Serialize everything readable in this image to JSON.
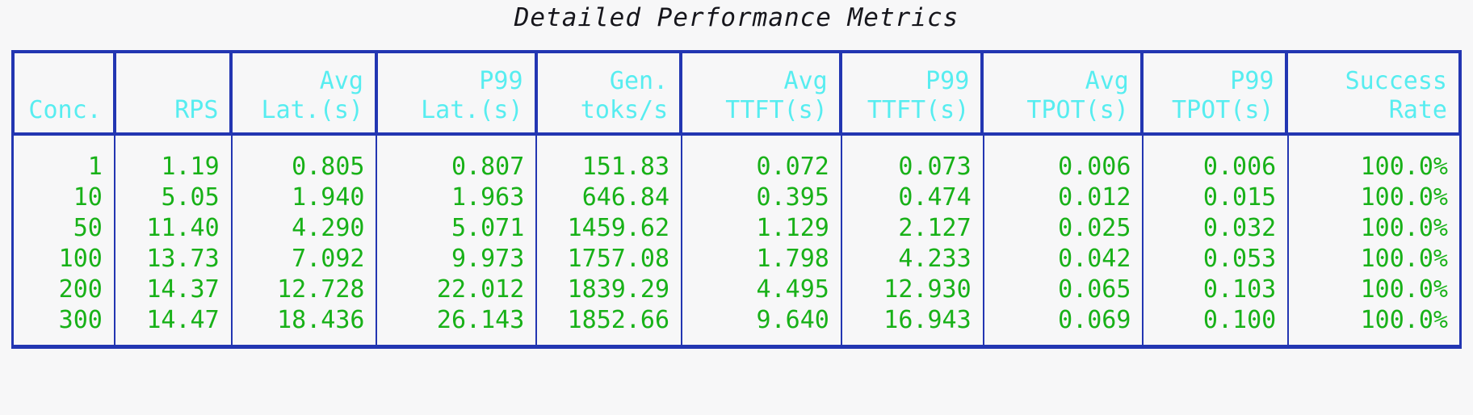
{
  "title": "Detailed Performance Metrics",
  "colors": {
    "border_blue": "#2336b2",
    "header_text_cyan": "#57edf0",
    "data_text_green": "#18b118",
    "background": "#f7f7f8",
    "title_text": "#16161c"
  },
  "table": {
    "columns": [
      {
        "id": "conc",
        "label_lines": [
          "Conc."
        ]
      },
      {
        "id": "rps",
        "label_lines": [
          "RPS"
        ]
      },
      {
        "id": "avg-lat",
        "label_lines": [
          "Avg",
          "Lat.(s)"
        ]
      },
      {
        "id": "p99-lat",
        "label_lines": [
          "P99",
          "Lat.(s)"
        ]
      },
      {
        "id": "gen-toks",
        "label_lines": [
          "Gen.",
          "toks/s"
        ]
      },
      {
        "id": "avg-ttft",
        "label_lines": [
          "Avg",
          "TTFT(s)"
        ]
      },
      {
        "id": "p99-ttft",
        "label_lines": [
          "P99",
          "TTFT(s)"
        ]
      },
      {
        "id": "avg-tpot",
        "label_lines": [
          "Avg",
          "TPOT(s)"
        ]
      },
      {
        "id": "p99-tpot",
        "label_lines": [
          "P99",
          "TPOT(s)"
        ]
      },
      {
        "id": "success-rate",
        "label_lines": [
          "Success",
          "Rate"
        ]
      }
    ],
    "rows": [
      [
        "1",
        "1.19",
        "0.805",
        "0.807",
        "151.83",
        "0.072",
        "0.073",
        "0.006",
        "0.006",
        "100.0%"
      ],
      [
        "10",
        "5.05",
        "1.940",
        "1.963",
        "646.84",
        "0.395",
        "0.474",
        "0.012",
        "0.015",
        "100.0%"
      ],
      [
        "50",
        "11.40",
        "4.290",
        "5.071",
        "1459.62",
        "1.129",
        "2.127",
        "0.025",
        "0.032",
        "100.0%"
      ],
      [
        "100",
        "13.73",
        "7.092",
        "9.973",
        "1757.08",
        "1.798",
        "4.233",
        "0.042",
        "0.053",
        "100.0%"
      ],
      [
        "200",
        "14.37",
        "12.728",
        "22.012",
        "1839.29",
        "4.495",
        "12.930",
        "0.065",
        "0.103",
        "100.0%"
      ],
      [
        "300",
        "14.47",
        "18.436",
        "26.143",
        "1852.66",
        "9.640",
        "16.943",
        "0.069",
        "0.100",
        "100.0%"
      ]
    ]
  },
  "chart_data": {
    "type": "table",
    "title": "Detailed Performance Metrics",
    "columns": [
      "Conc.",
      "RPS",
      "Avg Lat.(s)",
      "P99 Lat.(s)",
      "Gen. toks/s",
      "Avg TTFT(s)",
      "P99 TTFT(s)",
      "Avg TPOT(s)",
      "P99 TPOT(s)",
      "Success Rate"
    ],
    "rows": [
      [
        1,
        1.19,
        0.805,
        0.807,
        151.83,
        0.072,
        0.073,
        0.006,
        0.006,
        "100.0%"
      ],
      [
        10,
        5.05,
        1.94,
        1.963,
        646.84,
        0.395,
        0.474,
        0.012,
        0.015,
        "100.0%"
      ],
      [
        50,
        11.4,
        4.29,
        5.071,
        1459.62,
        1.129,
        2.127,
        0.025,
        0.032,
        "100.0%"
      ],
      [
        100,
        13.73,
        7.092,
        9.973,
        1757.08,
        1.798,
        4.233,
        0.042,
        0.053,
        "100.0%"
      ],
      [
        200,
        14.37,
        12.728,
        22.012,
        1839.29,
        4.495,
        12.93,
        0.065,
        0.103,
        "100.0%"
      ],
      [
        300,
        14.47,
        18.436,
        26.143,
        1852.66,
        9.64,
        16.943,
        0.069,
        0.1,
        "100.0%"
      ]
    ]
  }
}
